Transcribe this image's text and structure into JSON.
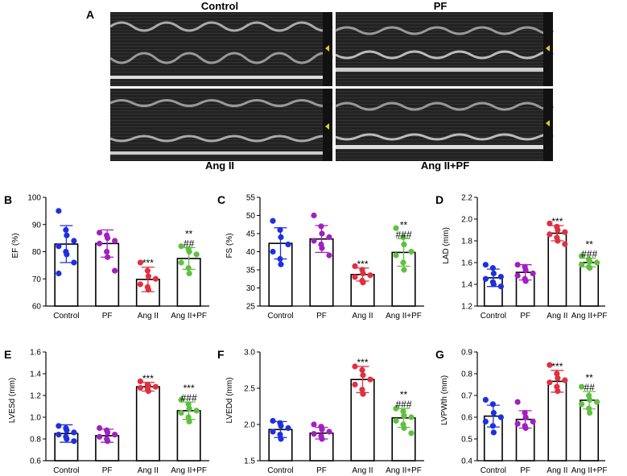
{
  "figure_label": "A",
  "echo_panels": [
    {
      "title": "Control"
    },
    {
      "title": "PF"
    },
    {
      "title": "Ang II"
    },
    {
      "title": "Ang II+PF"
    }
  ],
  "colors": {
    "Control": "#1f2fe0",
    "PF": "#a020c0",
    "Ang II": "#e03040",
    "Ang II+PF": "#60c040",
    "echo_bg": "#1c1c1c"
  },
  "chart_data": [
    {
      "panel": "B",
      "type": "bar",
      "ylabel": "EF (%)",
      "categories": [
        "Control",
        "PF",
        "Ang II",
        "Ang II+PF"
      ],
      "ylim": [
        60,
        100
      ],
      "yticks": [
        60,
        70,
        80,
        90,
        100
      ],
      "ytick_labels": [
        "60",
        "70",
        "80",
        "90",
        "100"
      ],
      "values": [
        82.8,
        83.0,
        69.8,
        77.5
      ],
      "sd": [
        6.8,
        5.0,
        4.5,
        4.0
      ],
      "points": [
        [
          95,
          88,
          86,
          84,
          82,
          80,
          79,
          76,
          72
        ],
        [
          87,
          86,
          85,
          84,
          83,
          80,
          78,
          73
        ],
        [
          76,
          73,
          71,
          70,
          68,
          67,
          66
        ],
        [
          82,
          81,
          80,
          79,
          76,
          74,
          72
        ]
      ],
      "annotations": [
        {
          "category": "Ang II",
          "lines": [
            "***"
          ]
        },
        {
          "category": "Ang II+PF",
          "lines": [
            "**",
            "##"
          ]
        }
      ]
    },
    {
      "panel": "C",
      "type": "bar",
      "ylabel": "FS (%)",
      "categories": [
        "Control",
        "PF",
        "Ang II",
        "Ang II+PF"
      ],
      "ylim": [
        25,
        55
      ],
      "yticks": [
        25,
        30,
        35,
        40,
        45,
        50,
        55
      ],
      "ytick_labels": [
        "25",
        "30",
        "35",
        "40",
        "45",
        "50",
        "55"
      ],
      "values": [
        42.3,
        43.5,
        33.7,
        39.8
      ],
      "sd": [
        4.3,
        3.7,
        1.8,
        3.8
      ],
      "points": [
        [
          48.5,
          46,
          44,
          42,
          40,
          38,
          36.5
        ],
        [
          50,
          47,
          45,
          44,
          43,
          42,
          41,
          39
        ],
        [
          36,
          35,
          34,
          33.5,
          33,
          32,
          31.5
        ],
        [
          46.5,
          44,
          42,
          40,
          39,
          37,
          35
        ]
      ],
      "annotations": [
        {
          "category": "Ang II",
          "lines": [
            "***"
          ]
        },
        {
          "category": "Ang II+PF",
          "lines": [
            "**",
            "###"
          ]
        }
      ]
    },
    {
      "panel": "D",
      "type": "bar",
      "ylabel": "LAD (mm)",
      "categories": [
        "Control",
        "PF",
        "Ang II",
        "Ang II+PF"
      ],
      "ylim": [
        1.2,
        2.2
      ],
      "yticks": [
        1.2,
        1.4,
        1.6,
        1.8,
        2.0,
        2.2
      ],
      "ytick_labels": [
        "1.2",
        "1.4",
        "1.6",
        "1.8",
        "2.0",
        "2.2"
      ],
      "values": [
        1.46,
        1.51,
        1.87,
        1.6
      ],
      "sd": [
        0.08,
        0.07,
        0.07,
        0.04
      ],
      "points": [
        [
          1.58,
          1.55,
          1.5,
          1.47,
          1.45,
          1.42,
          1.4,
          1.38
        ],
        [
          1.58,
          1.56,
          1.53,
          1.5,
          1.48,
          1.45,
          1.43
        ],
        [
          1.96,
          1.93,
          1.9,
          1.88,
          1.86,
          1.83,
          1.8,
          1.77
        ],
        [
          1.66,
          1.63,
          1.61,
          1.6,
          1.58,
          1.56,
          1.55
        ]
      ],
      "annotations": [
        {
          "category": "Ang II",
          "lines": [
            "***"
          ]
        },
        {
          "category": "Ang II+PF",
          "lines": [
            "**",
            "###"
          ]
        }
      ]
    },
    {
      "panel": "E",
      "type": "bar",
      "ylabel": "LVESd (mm)",
      "categories": [
        "Control",
        "PF",
        "Ang II",
        "Ang II+PF"
      ],
      "ylim": [
        0.6,
        1.6
      ],
      "yticks": [
        0.6,
        0.8,
        1.0,
        1.2,
        1.4,
        1.6
      ],
      "ytick_labels": [
        "0.6",
        "0.8",
        "1.0",
        "1.2",
        "1.4",
        "1.6"
      ],
      "values": [
        0.85,
        0.83,
        1.28,
        1.06
      ],
      "sd": [
        0.08,
        0.06,
        0.04,
        0.08
      ],
      "points": [
        [
          0.92,
          0.9,
          0.88,
          0.86,
          0.84,
          0.82,
          0.8,
          0.78
        ],
        [
          0.9,
          0.88,
          0.86,
          0.84,
          0.82,
          0.8,
          0.78
        ],
        [
          1.33,
          1.3,
          1.29,
          1.28,
          1.27,
          1.26,
          1.24
        ],
        [
          1.16,
          1.12,
          1.08,
          1.06,
          1.04,
          1.0,
          0.96
        ]
      ],
      "annotations": [
        {
          "category": "Ang II",
          "lines": [
            "***"
          ]
        },
        {
          "category": "Ang II+PF",
          "lines": [
            "***",
            "###"
          ]
        }
      ]
    },
    {
      "panel": "F",
      "type": "bar",
      "ylabel": "LVEDd (mm)",
      "categories": [
        "Control",
        "PF",
        "Ang II",
        "Ang II+PF"
      ],
      "ylim": [
        1.5,
        3.0
      ],
      "yticks": [
        1.5,
        2.0,
        2.5,
        3.0
      ],
      "ytick_labels": [
        "1.5",
        "2.0",
        "2.5",
        "3.0"
      ],
      "values": [
        1.93,
        1.88,
        2.62,
        2.09
      ],
      "sd": [
        0.11,
        0.08,
        0.18,
        0.13
      ],
      "points": [
        [
          2.05,
          2.02,
          1.98,
          1.95,
          1.9,
          1.86,
          1.8
        ],
        [
          2.0,
          1.97,
          1.93,
          1.9,
          1.87,
          1.84,
          1.8
        ],
        [
          2.8,
          2.75,
          2.68,
          2.62,
          2.55,
          2.48,
          2.42
        ],
        [
          2.22,
          2.18,
          2.12,
          2.1,
          2.05,
          2.0,
          1.95,
          1.88
        ]
      ],
      "annotations": [
        {
          "category": "Ang II",
          "lines": [
            "***"
          ]
        },
        {
          "category": "Ang II+PF",
          "lines": [
            "**",
            "###"
          ]
        }
      ]
    },
    {
      "panel": "G",
      "type": "bar",
      "ylabel": "LVPWth (mm)",
      "categories": [
        "Control",
        "PF",
        "Ang II",
        "Ang II+PF"
      ],
      "ylim": [
        0.4,
        0.9
      ],
      "yticks": [
        0.4,
        0.5,
        0.6,
        0.7,
        0.8,
        0.9
      ],
      "ytick_labels": [
        "0.4",
        "0.5",
        "0.6",
        "0.7",
        "0.8",
        "0.9"
      ],
      "values": [
        0.605,
        0.59,
        0.765,
        0.678
      ],
      "sd": [
        0.05,
        0.04,
        0.05,
        0.04
      ],
      "points": [
        [
          0.68,
          0.66,
          0.62,
          0.6,
          0.58,
          0.56,
          0.53
        ],
        [
          0.67,
          0.62,
          0.6,
          0.58,
          0.57,
          0.56,
          0.55
        ],
        [
          0.84,
          0.8,
          0.78,
          0.77,
          0.76,
          0.74,
          0.72
        ],
        [
          0.74,
          0.7,
          0.68,
          0.67,
          0.66,
          0.64,
          0.62
        ]
      ],
      "annotations": [
        {
          "category": "Ang II",
          "lines": [
            "***"
          ]
        },
        {
          "category": "Ang II+PF",
          "lines": [
            "**",
            "##"
          ]
        }
      ]
    }
  ]
}
